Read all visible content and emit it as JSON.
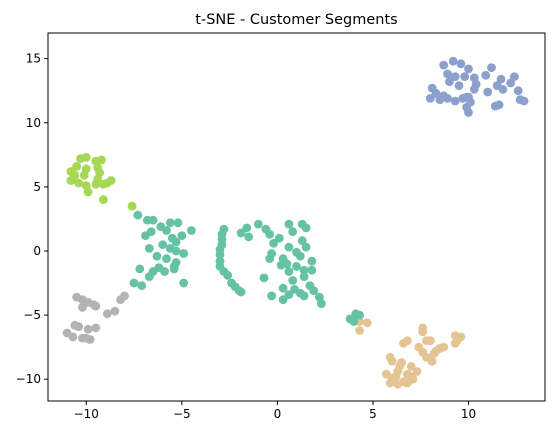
{
  "chart_data": {
    "type": "scatter",
    "title": "t-SNE - Customer Segments",
    "xlabel": "",
    "ylabel": "",
    "xlim": [
      -12,
      14
    ],
    "ylim": [
      -11.7,
      17
    ],
    "xticks": [
      -10,
      -5,
      0,
      5,
      10
    ],
    "yticks": [
      -10,
      -5,
      0,
      5,
      10,
      15
    ],
    "grid": false,
    "legend": "none",
    "clusters": [
      {
        "color": "#8da0cb",
        "points": [
          [
            8.7,
            14.5
          ],
          [
            9.2,
            14.8
          ],
          [
            9.6,
            14.6
          ],
          [
            10.0,
            14.2
          ],
          [
            8.9,
            13.8
          ],
          [
            9.3,
            13.6
          ],
          [
            9.8,
            13.6
          ],
          [
            10.3,
            13.5
          ],
          [
            10.9,
            13.7
          ],
          [
            11.2,
            14.3
          ],
          [
            11.7,
            13.4
          ],
          [
            12.4,
            13.6
          ],
          [
            11.5,
            12.9
          ],
          [
            11.8,
            12.6
          ],
          [
            12.2,
            13.1
          ],
          [
            12.6,
            12.5
          ],
          [
            9.0,
            13.2
          ],
          [
            9.5,
            12.9
          ],
          [
            10.4,
            13.0
          ],
          [
            10.0,
            12.0
          ],
          [
            10.3,
            12.6
          ],
          [
            11.0,
            12.4
          ],
          [
            8.1,
            12.7
          ],
          [
            8.3,
            12.3
          ],
          [
            8.0,
            11.9
          ],
          [
            8.5,
            11.8
          ],
          [
            8.9,
            11.9
          ],
          [
            9.3,
            11.7
          ],
          [
            9.7,
            11.9
          ],
          [
            10.1,
            11.6
          ],
          [
            10.0,
            10.8
          ],
          [
            9.9,
            11.2
          ],
          [
            11.4,
            11.3
          ],
          [
            11.6,
            11.4
          ],
          [
            12.7,
            11.8
          ],
          [
            12.9,
            11.7
          ],
          [
            8.7,
            12.1
          ],
          [
            9.9,
            12.0
          ]
        ]
      },
      {
        "color": "#a6d854",
        "points": [
          [
            -10.3,
            7.2
          ],
          [
            -10.0,
            7.3
          ],
          [
            -9.5,
            7.0
          ],
          [
            -9.2,
            7.1
          ],
          [
            -10.5,
            6.6
          ],
          [
            -10.0,
            6.4
          ],
          [
            -9.4,
            6.5
          ],
          [
            -9.3,
            6.1
          ],
          [
            -10.8,
            6.2
          ],
          [
            -10.6,
            5.9
          ],
          [
            -10.1,
            5.9
          ],
          [
            -9.4,
            5.6
          ],
          [
            -10.8,
            5.5
          ],
          [
            -10.4,
            5.3
          ],
          [
            -10.0,
            5.1
          ],
          [
            -9.5,
            5.2
          ],
          [
            -9.1,
            5.2
          ],
          [
            -8.9,
            5.3
          ],
          [
            -8.7,
            5.5
          ],
          [
            -9.9,
            4.6
          ],
          [
            -9.1,
            4.0
          ],
          [
            -7.6,
            3.5
          ]
        ]
      },
      {
        "color": "#b3b3b3",
        "points": [
          [
            -10.5,
            -3.6
          ],
          [
            -10.2,
            -3.8
          ],
          [
            -9.9,
            -4.0
          ],
          [
            -9.6,
            -4.2
          ],
          [
            -10.2,
            -4.4
          ],
          [
            -9.5,
            -4.3
          ],
          [
            -8.9,
            -4.9
          ],
          [
            -8.5,
            -4.7
          ],
          [
            -8.2,
            -3.8
          ],
          [
            -8.0,
            -3.5
          ],
          [
            -10.6,
            -5.8
          ],
          [
            -10.4,
            -5.9
          ],
          [
            -9.9,
            -6.1
          ],
          [
            -9.5,
            -6.0
          ],
          [
            -11.0,
            -6.4
          ],
          [
            -10.7,
            -6.7
          ],
          [
            -10.2,
            -6.8
          ],
          [
            -9.8,
            -6.9
          ],
          [
            -10.0,
            -6.8
          ]
        ]
      },
      {
        "color": "#e5c494",
        "points": [
          [
            4.3,
            -5.5
          ],
          [
            4.7,
            -5.6
          ],
          [
            4.3,
            -6.2
          ],
          [
            6.3,
            -9.4
          ],
          [
            7.0,
            -9.0
          ],
          [
            6.5,
            -8.7
          ],
          [
            6.8,
            -9.6
          ],
          [
            7.0,
            -9.8
          ],
          [
            6.6,
            -10.2
          ],
          [
            6.3,
            -10.4
          ],
          [
            5.9,
            -10.3
          ],
          [
            5.7,
            -9.6
          ],
          [
            6.0,
            -9.9
          ],
          [
            5.9,
            -8.3
          ],
          [
            6.0,
            -8.6
          ],
          [
            6.6,
            -7.2
          ],
          [
            6.8,
            -7.0
          ],
          [
            7.4,
            -7.5
          ],
          [
            7.6,
            -7.9
          ],
          [
            7.8,
            -8.3
          ],
          [
            8.2,
            -8.0
          ],
          [
            8.7,
            -7.5
          ],
          [
            9.3,
            -7.2
          ],
          [
            9.3,
            -6.6
          ],
          [
            9.6,
            -6.7
          ],
          [
            7.6,
            -6.3
          ],
          [
            7.6,
            -6.0
          ],
          [
            7.8,
            -7.0
          ],
          [
            8.0,
            -7.0
          ],
          [
            8.5,
            -7.6
          ],
          [
            8.1,
            -8.6
          ],
          [
            7.3,
            -9.4
          ],
          [
            7.1,
            -10.0
          ],
          [
            6.8,
            -10.3
          ],
          [
            6.4,
            -9.0
          ],
          [
            6.2,
            -9.8
          ],
          [
            9.4,
            -7.0
          ],
          [
            8.3,
            -7.8
          ]
        ]
      },
      {
        "color": "#66c2a5",
        "points": [
          [
            -7.3,
            2.8
          ],
          [
            -6.8,
            2.4
          ],
          [
            -6.5,
            2.4
          ],
          [
            -5.6,
            2.2
          ],
          [
            -5.2,
            2.2
          ],
          [
            -4.5,
            1.6
          ],
          [
            -5.0,
            1.2
          ],
          [
            -6.1,
            1.9
          ],
          [
            -6.6,
            1.5
          ],
          [
            -6.9,
            1.2
          ],
          [
            -5.8,
            1.6
          ],
          [
            -5.5,
            1.0
          ],
          [
            -5.3,
            0.7
          ],
          [
            -6.0,
            0.5
          ],
          [
            -6.7,
            0.2
          ],
          [
            -5.6,
            0.2
          ],
          [
            -5.3,
            0.0
          ],
          [
            -4.9,
            -0.2
          ],
          [
            -6.3,
            -0.4
          ],
          [
            -5.8,
            -0.6
          ],
          [
            -5.3,
            -0.9
          ],
          [
            -5.4,
            -1.4
          ],
          [
            -6.2,
            -1.3
          ],
          [
            -6.5,
            -1.6
          ],
          [
            -7.2,
            -1.4
          ],
          [
            -5.9,
            -1.6
          ],
          [
            -6.7,
            -2.0
          ],
          [
            -4.9,
            -2.5
          ],
          [
            -7.5,
            -2.5
          ],
          [
            -7.1,
            -2.7
          ],
          [
            -5.4,
            -1.2
          ],
          [
            -2.8,
            1.7
          ],
          [
            -2.9,
            1.3
          ],
          [
            -2.9,
            0.9
          ],
          [
            -2.9,
            0.5
          ],
          [
            -3.0,
            0.1
          ],
          [
            -3.0,
            -0.3
          ],
          [
            -3.0,
            -0.8
          ],
          [
            -3.0,
            -1.2
          ],
          [
            -2.8,
            -1.6
          ],
          [
            -2.6,
            -1.9
          ],
          [
            -2.4,
            -2.5
          ],
          [
            -2.2,
            -2.8
          ],
          [
            -2.0,
            -3.1
          ],
          [
            -1.9,
            -3.2
          ],
          [
            -1.6,
            1.8
          ],
          [
            -1.0,
            2.1
          ],
          [
            -0.6,
            1.7
          ],
          [
            -1.5,
            1.1
          ],
          [
            -1.9,
            1.4
          ],
          [
            -0.4,
            1.3
          ],
          [
            -0.2,
            0.6
          ],
          [
            -0.3,
            -0.2
          ],
          [
            -0.4,
            -0.6
          ],
          [
            -0.7,
            -2.1
          ],
          [
            0.6,
            2.1
          ],
          [
            1.3,
            2.1
          ],
          [
            1.5,
            1.8
          ],
          [
            0.8,
            1.5
          ],
          [
            0.1,
            1.0
          ],
          [
            1.3,
            0.8
          ],
          [
            0.6,
            0.3
          ],
          [
            1.0,
            -0.1
          ],
          [
            1.5,
            0.3
          ],
          [
            0.3,
            -0.6
          ],
          [
            1.2,
            -0.4
          ],
          [
            0.5,
            -1.0
          ],
          [
            1.0,
            -1.2
          ],
          [
            0.2,
            -1.1
          ],
          [
            0.6,
            -1.6
          ],
          [
            1.8,
            -1.5
          ],
          [
            1.4,
            -2.0
          ],
          [
            0.8,
            -2.3
          ],
          [
            1.7,
            -2.7
          ],
          [
            0.9,
            -3.0
          ],
          [
            0.3,
            -2.9
          ],
          [
            0.6,
            -3.4
          ],
          [
            1.2,
            -3.3
          ],
          [
            -0.3,
            -3.5
          ],
          [
            0.3,
            -3.8
          ],
          [
            1.4,
            -3.5
          ],
          [
            1.9,
            -3.1
          ],
          [
            2.2,
            -3.6
          ],
          [
            2.3,
            -4.1
          ],
          [
            1.8,
            -0.8
          ],
          [
            1.4,
            -1.5
          ],
          [
            3.8,
            -5.3
          ],
          [
            4.0,
            -5.5
          ],
          [
            4.1,
            -4.9
          ],
          [
            4.3,
            -5.0
          ]
        ]
      }
    ]
  }
}
